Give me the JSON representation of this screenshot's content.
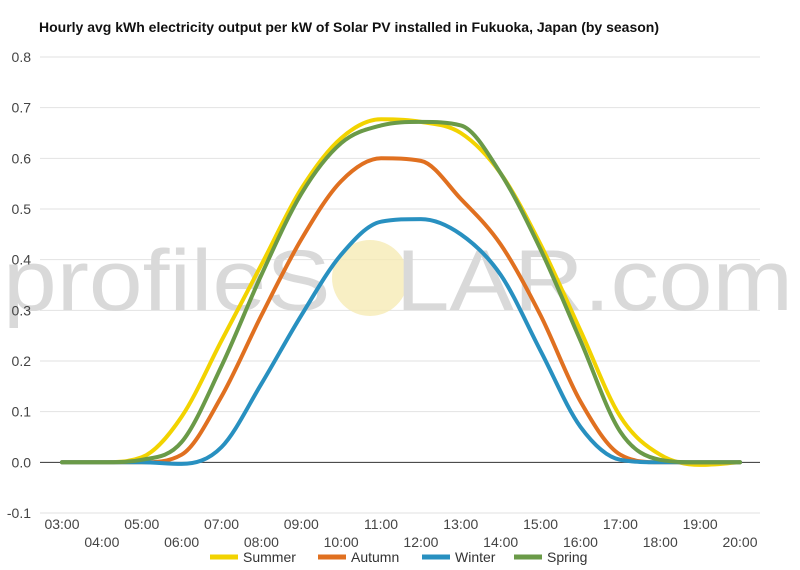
{
  "chart_data": {
    "type": "line",
    "title": "Hourly avg kWh electricity output per kW of Solar PV installed in Fukuoka, Japan (by season)",
    "xlabel": "",
    "ylabel": "",
    "x": [
      "03:00",
      "04:00",
      "05:00",
      "06:00",
      "07:00",
      "08:00",
      "09:00",
      "10:00",
      "11:00",
      "12:00",
      "13:00",
      "14:00",
      "15:00",
      "16:00",
      "17:00",
      "18:00",
      "19:00",
      "20:00"
    ],
    "ylim": [
      -0.1,
      0.8
    ],
    "yticks": [
      "0.8",
      "0.7",
      "0.6",
      "0.5",
      "0.4",
      "0.3",
      "0.2",
      "0.1",
      "0.0",
      "-0.1"
    ],
    "grid": true,
    "legend_position": "bottom",
    "series": [
      {
        "name": "Summer",
        "color": "#f2d300",
        "values": [
          0,
          0,
          0.01,
          0.09,
          0.24,
          0.39,
          0.54,
          0.64,
          0.677,
          0.672,
          0.65,
          0.57,
          0.43,
          0.26,
          0.09,
          0.015,
          -0.005,
          0
        ]
      },
      {
        "name": "Autumn",
        "color": "#e07020",
        "values": [
          0,
          0,
          0,
          0.015,
          0.13,
          0.29,
          0.44,
          0.555,
          0.6,
          0.595,
          0.52,
          0.43,
          0.29,
          0.12,
          0.015,
          0,
          0,
          0
        ]
      },
      {
        "name": "Winter",
        "color": "#2890c0",
        "values": [
          0,
          0,
          0,
          -0.003,
          0.03,
          0.155,
          0.29,
          0.41,
          0.475,
          0.48,
          0.45,
          0.37,
          0.22,
          0.07,
          0.005,
          0,
          0,
          0
        ]
      },
      {
        "name": "Spring",
        "color": "#6a9a48",
        "values": [
          0,
          0,
          0.005,
          0.04,
          0.19,
          0.37,
          0.53,
          0.63,
          0.665,
          0.672,
          0.665,
          0.57,
          0.42,
          0.24,
          0.06,
          0.005,
          0,
          0
        ]
      }
    ]
  },
  "watermark": {
    "before": "profileS",
    "after": "LAR.com"
  }
}
